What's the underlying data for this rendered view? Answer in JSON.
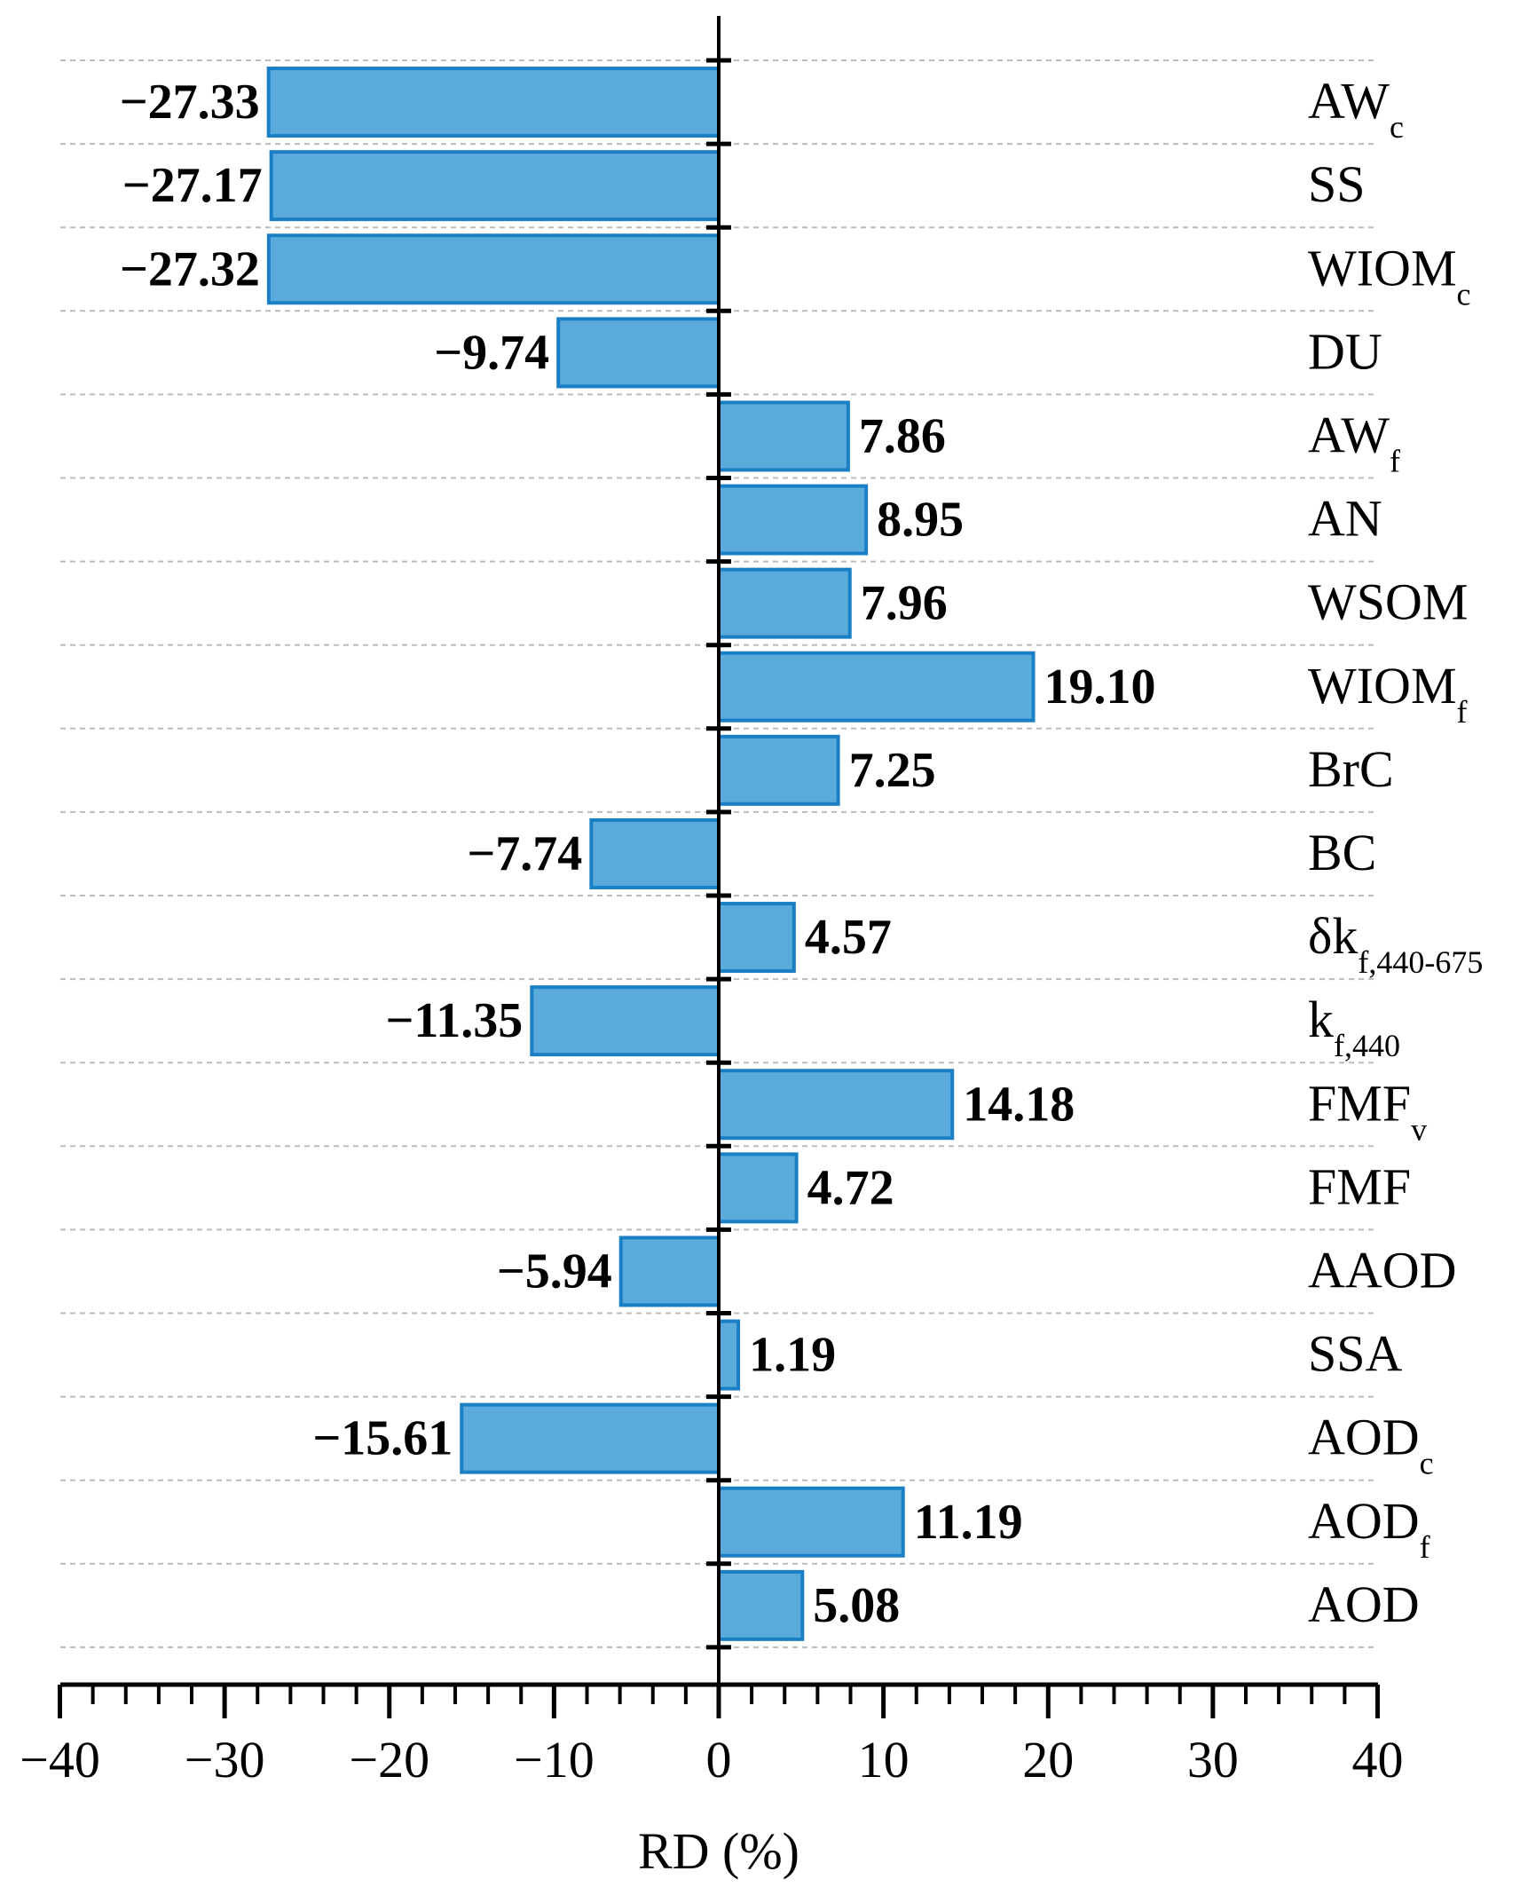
{
  "chart_data": {
    "type": "bar",
    "orientation": "horizontal",
    "xlabel": "RD (%)",
    "xlim": [
      -40,
      40
    ],
    "xticks": [
      -40,
      -30,
      -20,
      -10,
      0,
      10,
      20,
      30,
      40
    ],
    "xtick_labels": [
      "−40",
      "−30",
      "−20",
      "−10",
      "0",
      "10",
      "20",
      "30",
      "40"
    ],
    "categories": [
      {
        "base": "AW",
        "sub": "c"
      },
      {
        "base": "SS",
        "sub": ""
      },
      {
        "base": "WIOM",
        "sub": "c"
      },
      {
        "base": "DU",
        "sub": ""
      },
      {
        "base": "AW",
        "sub": "f"
      },
      {
        "base": "AN",
        "sub": ""
      },
      {
        "base": "WSOM",
        "sub": ""
      },
      {
        "base": "WIOM",
        "sub": "f"
      },
      {
        "base": "BrC",
        "sub": ""
      },
      {
        "base": "BC",
        "sub": ""
      },
      {
        "base": "δk",
        "sub": "f,440-675"
      },
      {
        "base": "k",
        "sub": "f,440"
      },
      {
        "base": "FMF",
        "sub": "v"
      },
      {
        "base": "FMF",
        "sub": ""
      },
      {
        "base": "AAOD",
        "sub": ""
      },
      {
        "base": "SSA",
        "sub": ""
      },
      {
        "base": "AOD",
        "sub": "c"
      },
      {
        "base": "AOD",
        "sub": "f"
      },
      {
        "base": "AOD",
        "sub": ""
      }
    ],
    "values": [
      -27.33,
      -27.17,
      -27.32,
      -9.74,
      7.86,
      8.95,
      7.96,
      19.1,
      7.25,
      -7.74,
      4.57,
      -11.35,
      14.18,
      4.72,
      -5.94,
      1.19,
      -15.61,
      11.19,
      5.08
    ],
    "value_labels": [
      "−27.33",
      "−27.17",
      "−27.32",
      "−9.74",
      "7.86",
      "8.95",
      "7.96",
      "19.10",
      "7.25",
      "−7.74",
      "4.57",
      "−11.35",
      "14.18",
      "4.72",
      "−5.94",
      "1.19",
      "−15.61",
      "11.19",
      "5.08"
    ],
    "colors": {
      "bar_fill": "#5aabdb",
      "bar_stroke": "#1a7fc4",
      "grid": "#bbbbbb",
      "axis": "#000000"
    }
  }
}
